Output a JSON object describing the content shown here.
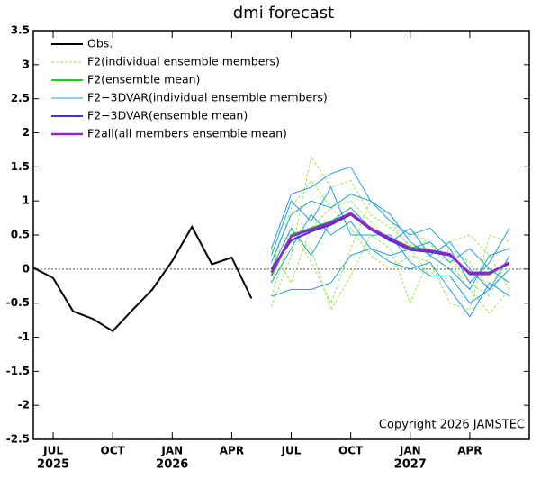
{
  "chart_data": {
    "type": "line",
    "title": "dmi forecast",
    "annotation": "Copyright 2026 JAMSTEC",
    "x": [
      "2025-06",
      "2025-07",
      "2025-08",
      "2025-09",
      "2025-10",
      "2025-11",
      "2025-12",
      "2026-01",
      "2026-02",
      "2026-03",
      "2026-04",
      "2026-05",
      "2026-06",
      "2026-07",
      "2026-08",
      "2026-09",
      "2026-10",
      "2026-11",
      "2026-12",
      "2027-01",
      "2027-02",
      "2027-03",
      "2027-04",
      "2027-05",
      "2027-06"
    ],
    "xlim": [
      "2025-06",
      "2027-07"
    ],
    "xticks": [
      {
        "value": "2025-07",
        "label": "JUL",
        "year": "2025"
      },
      {
        "value": "2025-10",
        "label": "OCT"
      },
      {
        "value": "2026-01",
        "label": "JAN",
        "year": "2026"
      },
      {
        "value": "2026-04",
        "label": "APR"
      },
      {
        "value": "2026-07",
        "label": "JUL"
      },
      {
        "value": "2026-10",
        "label": "OCT"
      },
      {
        "value": "2027-01",
        "label": "JAN",
        "year": "2027"
      },
      {
        "value": "2027-04",
        "label": "APR"
      }
    ],
    "ylim": [
      -2.5,
      3.5
    ],
    "yticks": [
      -2.5,
      -2,
      -1.5,
      -1,
      -0.5,
      0,
      0.5,
      1,
      1.5,
      2,
      2.5,
      3,
      3.5
    ],
    "zero_line": true,
    "series": [
      {
        "name": "Obs.",
        "color": "#000000",
        "dash": false,
        "width": 2,
        "values": [
          0.02,
          -0.13,
          -0.62,
          -0.73,
          -0.91,
          -0.6,
          -0.3,
          0.12,
          0.62,
          0.07,
          0.17,
          -0.43,
          null,
          null,
          null,
          null,
          null,
          null,
          null,
          null,
          null,
          null,
          null,
          null,
          null
        ]
      },
      {
        "name": "F2(individual ensemble members)",
        "color": "#9be34a",
        "dash": true,
        "width": 1,
        "members": [
          [
            null,
            null,
            null,
            null,
            null,
            null,
            null,
            null,
            null,
            null,
            null,
            null,
            -0.55,
            0.2,
            1.65,
            1.2,
            1.3,
            0.8,
            0.6,
            0.35,
            0.3,
            0.1,
            -0.3,
            -0.65,
            -0.3
          ],
          [
            null,
            null,
            null,
            null,
            null,
            null,
            null,
            null,
            null,
            null,
            null,
            null,
            -0.4,
            0.5,
            0.3,
            -0.6,
            -0.1,
            0.5,
            0.3,
            -0.5,
            0.2,
            0.4,
            0.5,
            0.2,
            -0.3
          ],
          [
            null,
            null,
            null,
            null,
            null,
            null,
            null,
            null,
            null,
            null,
            null,
            null,
            0.0,
            0.9,
            1.3,
            0.9,
            1.0,
            0.7,
            0.4,
            0.6,
            0.35,
            0.2,
            -0.2,
            -0.4,
            0.2
          ],
          [
            null,
            null,
            null,
            null,
            null,
            null,
            null,
            null,
            null,
            null,
            null,
            null,
            0.3,
            -0.2,
            0.6,
            0.9,
            0.6,
            0.2,
            0.0,
            0.2,
            0.1,
            -0.5,
            -0.6,
            0.5,
            0.4
          ],
          [
            null,
            null,
            null,
            null,
            null,
            null,
            null,
            null,
            null,
            null,
            null,
            null,
            -0.2,
            0.6,
            0.1,
            -0.5,
            0.3,
            1.0,
            0.7,
            0.3,
            -0.1,
            0.3,
            0.1,
            -0.3,
            0.0
          ]
        ]
      },
      {
        "name": "F2(ensemble mean)",
        "color": "#22cc22",
        "dash": false,
        "width": 2,
        "values": [
          null,
          null,
          null,
          null,
          null,
          null,
          null,
          null,
          null,
          null,
          null,
          null,
          -0.1,
          0.5,
          0.6,
          0.7,
          0.82,
          0.6,
          0.45,
          0.32,
          0.28,
          0.22,
          -0.08,
          -0.08,
          0.1
        ]
      },
      {
        "name": "F2−3DVAR(individual ensemble members)",
        "color": "#1ea0dc",
        "dash": false,
        "width": 1,
        "members": [
          [
            null,
            null,
            null,
            null,
            null,
            null,
            null,
            null,
            null,
            null,
            null,
            null,
            0.3,
            1.1,
            1.2,
            1.4,
            1.5,
            1.0,
            0.7,
            0.5,
            0.6,
            0.3,
            -0.2,
            0.1,
            0.6
          ],
          [
            null,
            null,
            null,
            null,
            null,
            null,
            null,
            null,
            null,
            null,
            null,
            null,
            -0.4,
            -0.3,
            -0.3,
            -0.2,
            0.2,
            0.3,
            0.1,
            0.0,
            0.1,
            -0.3,
            -0.7,
            -0.2,
            -0.4
          ],
          [
            null,
            null,
            null,
            null,
            null,
            null,
            null,
            null,
            null,
            null,
            null,
            null,
            0.1,
            0.8,
            1.0,
            0.9,
            1.1,
            1.0,
            0.8,
            0.4,
            0.2,
            0.4,
            0.0,
            -0.3,
            0.2
          ],
          [
            null,
            null,
            null,
            null,
            null,
            null,
            null,
            null,
            null,
            null,
            null,
            null,
            -0.2,
            0.3,
            0.8,
            0.5,
            0.7,
            0.3,
            0.2,
            0.3,
            0.4,
            0.1,
            0.3,
            0.0,
            -0.2
          ],
          [
            null,
            null,
            null,
            null,
            null,
            null,
            null,
            null,
            null,
            null,
            null,
            null,
            0.0,
            0.6,
            0.2,
            0.7,
            0.9,
            0.6,
            0.4,
            0.6,
            0.2,
            0.0,
            -0.3,
            0.2,
            0.3
          ],
          [
            null,
            null,
            null,
            null,
            null,
            null,
            null,
            null,
            null,
            null,
            null,
            null,
            0.2,
            1.0,
            0.7,
            1.2,
            0.5,
            0.5,
            0.5,
            0.1,
            -0.1,
            -0.1,
            -0.5,
            -0.3,
            0.0
          ]
        ]
      },
      {
        "name": "F2−3DVAR(ensemble mean)",
        "color": "#4433cc",
        "dash": false,
        "width": 2,
        "values": [
          null,
          null,
          null,
          null,
          null,
          null,
          null,
          null,
          null,
          null,
          null,
          null,
          0.0,
          0.42,
          0.55,
          0.65,
          0.8,
          0.58,
          0.42,
          0.28,
          0.25,
          0.2,
          -0.05,
          -0.05,
          0.08
        ]
      },
      {
        "name": "F2all(all members ensemble mean)",
        "color": "#9922cc",
        "dash": false,
        "width": 2.5,
        "values": [
          null,
          null,
          null,
          null,
          null,
          null,
          null,
          null,
          null,
          null,
          null,
          null,
          -0.05,
          0.48,
          0.58,
          0.68,
          0.82,
          0.6,
          0.45,
          0.3,
          0.27,
          0.22,
          -0.07,
          -0.06,
          0.1
        ]
      }
    ]
  }
}
